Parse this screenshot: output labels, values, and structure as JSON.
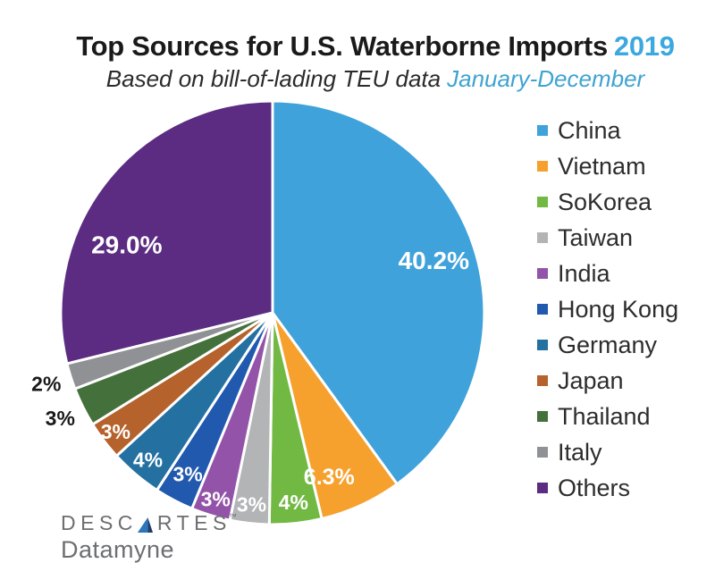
{
  "header": {
    "title": "Top Sources for U.S. Waterborne Imports",
    "year": "2019",
    "subtitle": "Based on bill-of-lading TEU data",
    "period": "January-December",
    "title_color": "#1a1a1a",
    "year_color": "#3BA8DE",
    "subtitle_color": "#2b2b2b",
    "period_color": "#3FA3D2"
  },
  "chart_data": {
    "type": "pie",
    "title": "Top Sources for U.S. Waterborne Imports 2019",
    "subtitle": "Based on bill-of-lading TEU data January-December",
    "start_angle_deg": 0,
    "direction": "clockwise",
    "legend_position": "right",
    "inside_label_color": "#FFFFFF",
    "outside_label_color": "#1A1A1A",
    "slices": [
      {
        "name": "China",
        "value": 40.2,
        "label": "40.2%",
        "color": "#3FA2DB",
        "label_placement": "inside",
        "label_r": 0.8
      },
      {
        "name": "Vietnam",
        "value": 6.3,
        "label": "6.3%",
        "color": "#F6A12E",
        "label_placement": "inside",
        "label_r": 0.82,
        "label_angle_deg": 161
      },
      {
        "name": "SoKorea",
        "value": 4.0,
        "label": "4%",
        "color": "#72B944",
        "label_placement": "inside",
        "label_r": 0.9
      },
      {
        "name": "Taiwan",
        "value": 3.0,
        "label": "3%",
        "color": "#B3B4B6",
        "label_placement": "inside",
        "label_r": 0.91
      },
      {
        "name": "India",
        "value": 3.0,
        "label": "3%",
        "color": "#9353A8",
        "label_placement": "inside",
        "label_r": 0.92
      },
      {
        "name": "Hong Kong",
        "value": 3.0,
        "label": "3%",
        "color": "#2159AE",
        "label_placement": "inside",
        "label_r": 0.86
      },
      {
        "name": "Germany",
        "value": 4.0,
        "label": "4%",
        "color": "#2471A1",
        "label_placement": "inside",
        "label_r": 0.91
      },
      {
        "name": "Japan",
        "value": 3.0,
        "label": "3%",
        "color": "#B5622C",
        "label_placement": "inside",
        "label_r": 0.93
      },
      {
        "name": "Thailand",
        "value": 3.0,
        "label": "3%",
        "color": "#44703B",
        "label_placement": "outside",
        "label_r": 1.12
      },
      {
        "name": "Italy",
        "value": 2.0,
        "label": "2%",
        "color": "#8F9194",
        "label_placement": "outside",
        "label_r": 1.12
      },
      {
        "name": "Others",
        "value": 29.0,
        "label": "29.0%",
        "color": "#5B2C81",
        "label_placement": "inside",
        "label_r": 0.76,
        "label_angle_deg": 295
      }
    ]
  },
  "logo": {
    "brand": "DESCARTES",
    "trademark": "™",
    "product": "Datamyne",
    "text_color": "#6d6e71",
    "triangle_light": "#2E76BC",
    "triangle_dark": "#1F3D6D"
  }
}
